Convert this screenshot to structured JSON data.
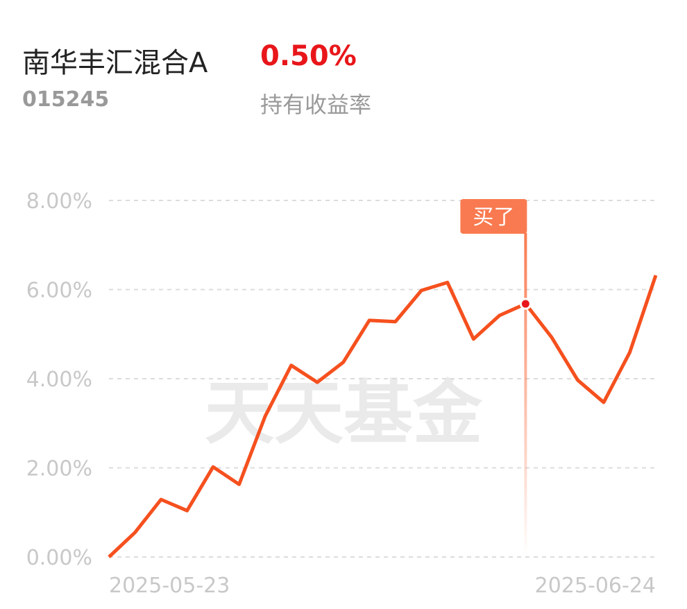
{
  "header": {
    "title": "南华丰汇混合A",
    "code": "015245",
    "return": "0.50%",
    "return_label": "持有收益率"
  },
  "chart_data": {
    "type": "line",
    "watermark": "天天基金",
    "categories": [
      "2025-05-23",
      null,
      null,
      null,
      null,
      null,
      null,
      null,
      null,
      null,
      null,
      null,
      null,
      null,
      null,
      null,
      null,
      null,
      null,
      null,
      null,
      "2025-06-24"
    ],
    "series": [
      {
        "name": "持有收益率",
        "color": "#f5501e",
        "values": [
          0,
          0.55,
          1.29,
          1.04,
          2.02,
          1.63,
          3.16,
          4.3,
          3.92,
          4.37,
          5.31,
          5.28,
          5.98,
          6.16,
          4.89,
          5.42,
          5.68,
          4.93,
          3.97,
          3.47,
          4.59,
          6.32
        ]
      }
    ],
    "ylim": [
      0,
      8
    ],
    "yticks": [
      {
        "value": 0,
        "label": "0.00%"
      },
      {
        "value": 2,
        "label": "2.00%"
      },
      {
        "value": 4,
        "label": "4.00%"
      },
      {
        "value": 6,
        "label": "6.00%"
      },
      {
        "value": 8,
        "label": "8.00%"
      }
    ],
    "grid": true,
    "annotations": [
      {
        "text": "买了",
        "x": 16,
        "color": "#f97a50"
      }
    ]
  }
}
